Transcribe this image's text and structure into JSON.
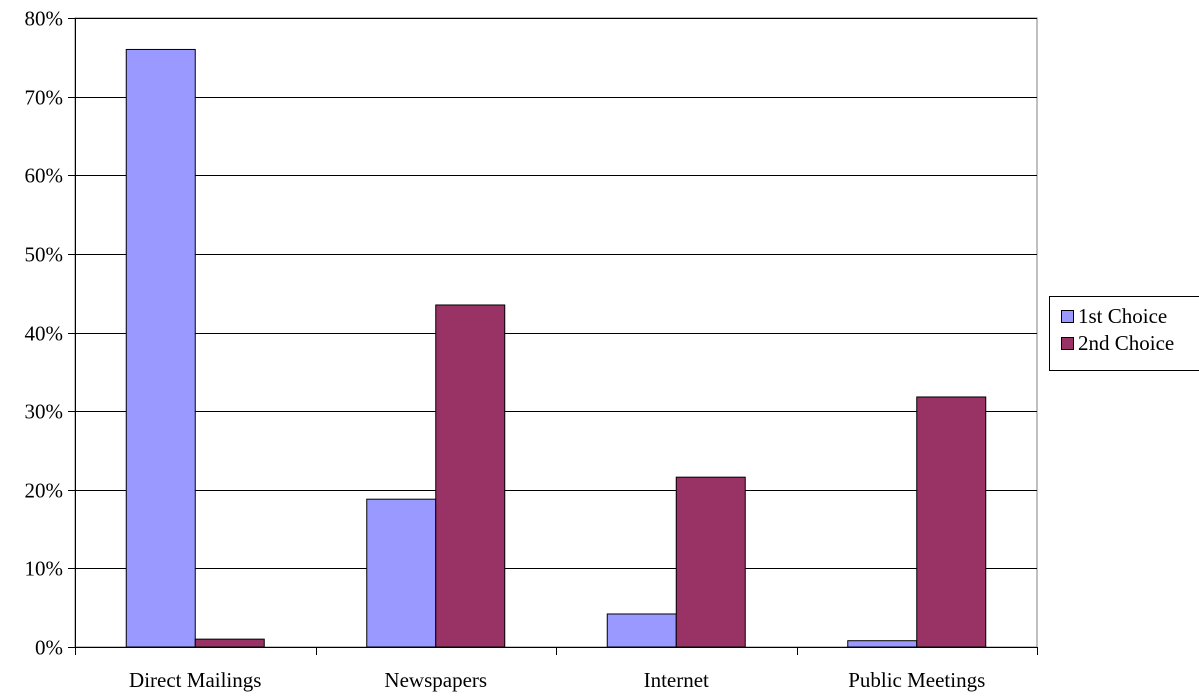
{
  "chart_data": {
    "type": "bar",
    "categories": [
      "Direct Mailings",
      "Newspapers",
      "Internet",
      "Public Meetings"
    ],
    "series": [
      {
        "name": "1st Choice",
        "color": "#9999ff",
        "values": [
          76,
          18.8,
          4.2,
          0.8
        ]
      },
      {
        "name": "2nd Choice",
        "color": "#993366",
        "values": [
          1.0,
          43.5,
          21.6,
          31.8
        ]
      }
    ],
    "ylim": [
      0,
      80
    ],
    "yticks": [
      0,
      10,
      20,
      30,
      40,
      50,
      60,
      70,
      80
    ],
    "ytick_labels": [
      "0%",
      "10%",
      "20%",
      "30%",
      "40%",
      "50%",
      "60%",
      "70%",
      "80%"
    ],
    "grid": true,
    "legend_position": "right",
    "title": "",
    "xlabel": "",
    "ylabel": ""
  }
}
